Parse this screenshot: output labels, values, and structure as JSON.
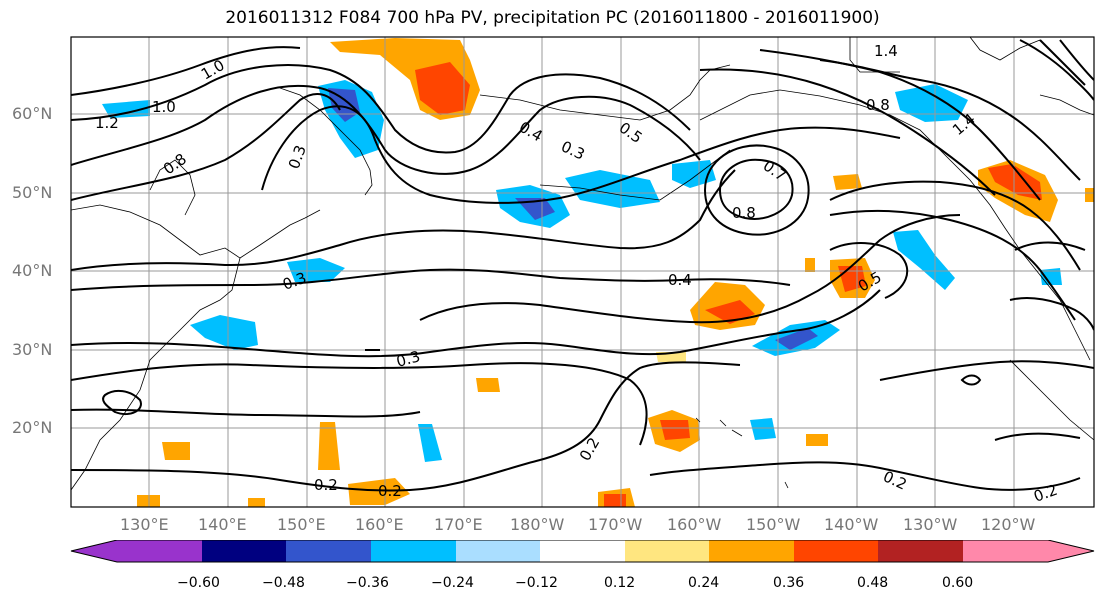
{
  "title": "2016011312 F084 700 hPa PV, precipitation PC (2016011800 - 2016011900)",
  "lat_labels": [
    "60°N",
    "50°N",
    "40°N",
    "30°N",
    "20°N"
  ],
  "lon_labels": [
    "130°E",
    "140°E",
    "150°E",
    "160°E",
    "170°E",
    "180°W",
    "170°W",
    "160°W",
    "150°W",
    "140°W",
    "130°W",
    "120°W"
  ],
  "colorbar": {
    "ticks": [
      "−0.60",
      "−0.48",
      "−0.36",
      "−0.24",
      "−0.12",
      "0.12",
      "0.24",
      "0.36",
      "0.48",
      "0.60"
    ],
    "colors": [
      "#9933cc",
      "#000080",
      "#3355cc",
      "#00bfff",
      "#aadeff",
      "#ffffff",
      "#ffe680",
      "#ffa500",
      "#ff4500",
      "#b22222",
      "#ff88aa"
    ]
  },
  "contour_labels": [
    "1.0",
    "1.0",
    "1.2",
    "0.8",
    "0.3",
    "0.4",
    "0.3",
    "0.5",
    "0.7",
    "0.8",
    "0.8",
    "1.4",
    "1.4",
    "0.3",
    "0.4",
    "0.5",
    "0.3",
    "0.2",
    "0.2",
    "0.2",
    "0.2",
    "0.2"
  ],
  "colors": {
    "line": "#000000",
    "grid": "#888888",
    "coast": "#000000"
  }
}
